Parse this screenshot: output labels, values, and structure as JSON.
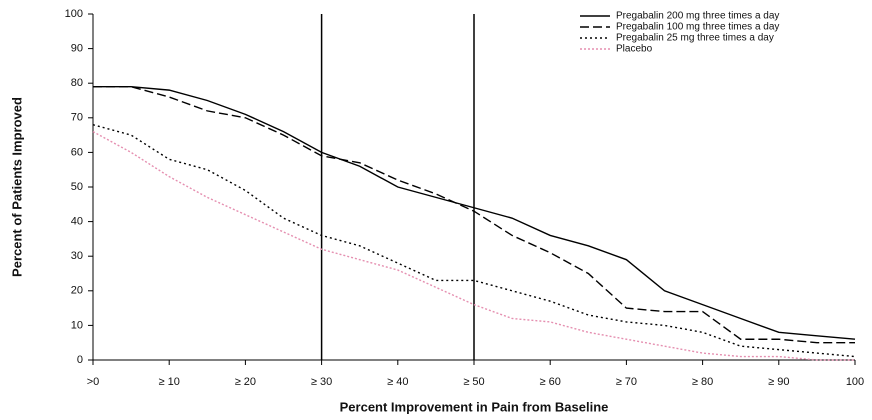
{
  "chart_data": {
    "type": "line",
    "xlabel": "Percent Improvement in Pain from Baseline",
    "ylabel": "Percent of Patients Improved",
    "x": [
      0,
      5,
      10,
      15,
      20,
      25,
      30,
      35,
      40,
      45,
      50,
      55,
      60,
      65,
      70,
      75,
      80,
      85,
      90,
      95,
      100
    ],
    "series": [
      {
        "name": "Pregabalin 200 mg three times a day",
        "color": "#000000",
        "dash": "none",
        "values": [
          79,
          79,
          78,
          75,
          71,
          66,
          60,
          56,
          50,
          47,
          44,
          41,
          36,
          33,
          29,
          20,
          16,
          12,
          8,
          7,
          6
        ]
      },
      {
        "name": "Pregabalin 100 mg three times a day",
        "color": "#000000",
        "dash": "9 4",
        "values": [
          79,
          79,
          76,
          72,
          70,
          65,
          59,
          57,
          52,
          48,
          43,
          36,
          31,
          25,
          15,
          14,
          14,
          6,
          6,
          5,
          5
        ]
      },
      {
        "name": "Pregabalin 25 mg three times a day",
        "color": "#000000",
        "dash": "2 3",
        "values": [
          68,
          65,
          58,
          55,
          49,
          41,
          36,
          33,
          28,
          23,
          23,
          20,
          17,
          13,
          11,
          10,
          8,
          4,
          3,
          2,
          1
        ]
      },
      {
        "name": "Placebo",
        "color": "#e58fb0",
        "dash": "2 2",
        "values": [
          66,
          60,
          53,
          47,
          42,
          37,
          32,
          29,
          26,
          21,
          16,
          12,
          11,
          8,
          6,
          4,
          2,
          1,
          1,
          0,
          0
        ]
      }
    ],
    "xlim": [
      0,
      100
    ],
    "xticks": [
      {
        "value": 0,
        "label": ">0"
      },
      {
        "value": 10,
        "label": "≥ 10"
      },
      {
        "value": 20,
        "label": "≥ 20"
      },
      {
        "value": 30,
        "label": "≥ 30"
      },
      {
        "value": 40,
        "label": "≥ 40"
      },
      {
        "value": 50,
        "label": "≥ 50"
      },
      {
        "value": 60,
        "label": "≥ 60"
      },
      {
        "value": 70,
        "label": "≥ 70"
      },
      {
        "value": 80,
        "label": "≥ 80"
      },
      {
        "value": 90,
        "label": "≥ 90"
      },
      100
    ],
    "ylim": [
      0,
      100
    ],
    "yticks": [
      0,
      10,
      20,
      30,
      40,
      50,
      60,
      70,
      80,
      90,
      100
    ],
    "vlines": [
      30,
      50
    ],
    "legend": "top-right"
  }
}
